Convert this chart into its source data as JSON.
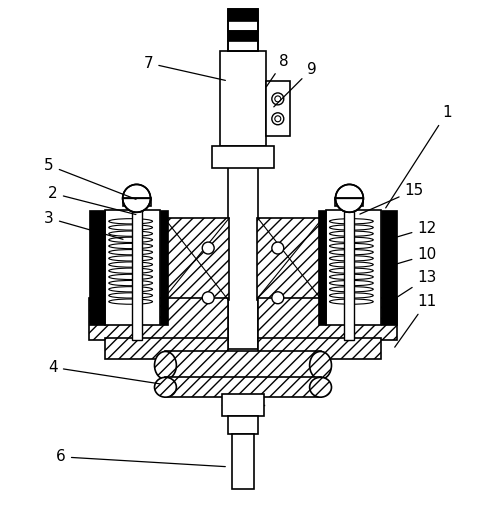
{
  "background": "#ffffff",
  "line_color": "#000000",
  "figsize": [
    4.86,
    5.09
  ],
  "dpi": 100,
  "labels_data": [
    [
      "1",
      448,
      112,
      385,
      210
    ],
    [
      "2",
      52,
      193,
      138,
      215
    ],
    [
      "3",
      48,
      218,
      125,
      240
    ],
    [
      "4",
      52,
      368,
      162,
      385
    ],
    [
      "5",
      48,
      165,
      138,
      200
    ],
    [
      "6",
      60,
      458,
      228,
      468
    ],
    [
      "7",
      148,
      62,
      228,
      80
    ],
    [
      "8",
      284,
      60,
      265,
      88
    ],
    [
      "9",
      312,
      68,
      272,
      108
    ],
    [
      "10",
      428,
      255,
      394,
      265
    ],
    [
      "11",
      428,
      302,
      394,
      350
    ],
    [
      "12",
      428,
      228,
      394,
      238
    ],
    [
      "13",
      428,
      278,
      394,
      300
    ],
    [
      "15",
      415,
      190,
      358,
      215
    ]
  ]
}
